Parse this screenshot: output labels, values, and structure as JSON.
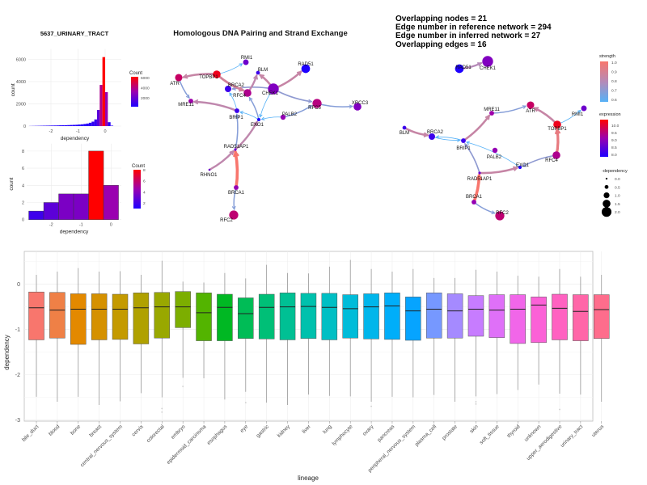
{
  "chart_data": [
    {
      "type": "bar",
      "title": "5637_URINARY_TRACT",
      "xlabel": "dependency",
      "ylabel": "count",
      "xticks": [
        "-2",
        "-1",
        "0"
      ],
      "yticks": [
        "0",
        "2000",
        "4000",
        "6000"
      ],
      "ylim": [
        0,
        6500
      ],
      "legend": {
        "title": "Count",
        "labels": [
          "2000",
          "4000",
          "6000"
        ],
        "low": "#1E00FF",
        "high": "#FF0000",
        "placement": "right"
      },
      "bin_width": 0.1,
      "bins": [
        {
          "x": -2.75,
          "count": 10
        },
        {
          "x": -2.65,
          "count": 15
        },
        {
          "x": -2.55,
          "count": 20
        },
        {
          "x": -2.45,
          "count": 25
        },
        {
          "x": -2.35,
          "count": 30
        },
        {
          "x": -2.25,
          "count": 35
        },
        {
          "x": -2.15,
          "count": 40
        },
        {
          "x": -2.05,
          "count": 45
        },
        {
          "x": -1.95,
          "count": 50
        },
        {
          "x": -1.85,
          "count": 55
        },
        {
          "x": -1.75,
          "count": 60
        },
        {
          "x": -1.65,
          "count": 70
        },
        {
          "x": -1.55,
          "count": 75
        },
        {
          "x": -1.45,
          "count": 80
        },
        {
          "x": -1.35,
          "count": 90
        },
        {
          "x": -1.25,
          "count": 100
        },
        {
          "x": -1.15,
          "count": 110
        },
        {
          "x": -1.05,
          "count": 120
        },
        {
          "x": -0.95,
          "count": 140
        },
        {
          "x": -0.85,
          "count": 160
        },
        {
          "x": -0.75,
          "count": 190
        },
        {
          "x": -0.65,
          "count": 230
        },
        {
          "x": -0.55,
          "count": 300
        },
        {
          "x": -0.45,
          "count": 400
        },
        {
          "x": -0.35,
          "count": 600
        },
        {
          "x": -0.25,
          "count": 1450
        },
        {
          "x": -0.15,
          "count": 3700
        },
        {
          "x": -0.05,
          "count": 6200
        },
        {
          "x": 0.05,
          "count": 3050
        },
        {
          "x": 0.15,
          "count": 350
        },
        {
          "x": 0.25,
          "count": 40
        }
      ]
    },
    {
      "type": "bar",
      "xlabel": "dependency",
      "ylabel": "count",
      "xticks": [
        "-2",
        "-1",
        "0"
      ],
      "yticks": [
        "0",
        "2",
        "4",
        "6",
        "8"
      ],
      "ylim": [
        0,
        8.3
      ],
      "legend": {
        "title": "Count",
        "labels": [
          "2",
          "4",
          "6",
          "8"
        ],
        "low": "#1E00FF",
        "high": "#FF0000",
        "placement": "right"
      },
      "bin_width": 0.5,
      "bins": [
        {
          "x": -2.5,
          "count": 1
        },
        {
          "x": -2.0,
          "count": 2
        },
        {
          "x": -1.5,
          "count": 3
        },
        {
          "x": -1.0,
          "count": 3
        },
        {
          "x": -0.5,
          "count": 8
        },
        {
          "x": 0.0,
          "count": 4
        }
      ]
    },
    {
      "type": "network",
      "title": "Homologous DNA Pairing and Strand Exchange",
      "edges": [
        {
          "from": "CHEK1",
          "to": "RAD51",
          "strength": 0.85
        },
        {
          "from": "CHEK1",
          "to": "BLM",
          "strength": 0.85
        },
        {
          "from": "CHEK1",
          "to": "RFC5",
          "strength": 0.72
        },
        {
          "from": "CHEK1",
          "to": "BRCA2",
          "strength": 0.72
        },
        {
          "from": "TOPBP1",
          "to": "ATR",
          "strength": 0.85
        },
        {
          "from": "TOPBP1",
          "to": "RMI1",
          "strength": 0.6
        },
        {
          "from": "TOPBP1",
          "to": "RFC4",
          "strength": 0.88
        },
        {
          "from": "ATR",
          "to": "MRE11",
          "strength": 0.7
        },
        {
          "from": "BRIP1",
          "to": "MRE11",
          "strength": 0.83
        },
        {
          "from": "BRIP1",
          "to": "BRCA2",
          "strength": 0.6
        },
        {
          "from": "RFC4",
          "to": "BLM",
          "strength": 0.83
        },
        {
          "from": "EXO1",
          "to": "RFC4",
          "strength": 0.7
        },
        {
          "from": "EXO1",
          "to": "BRIP1",
          "strength": 0.6
        },
        {
          "from": "PALB2",
          "to": "EXO1",
          "strength": 0.6
        },
        {
          "from": "CHEK1",
          "to": "EXO1",
          "strength": 0.6
        },
        {
          "from": "PALB2",
          "to": "RFC5",
          "strength": 0.7
        },
        {
          "from": "RFC5",
          "to": "XRCC3",
          "strength": 0.7
        },
        {
          "from": "RAD51AP1",
          "to": "BRIP1",
          "strength": 0.7
        },
        {
          "from": "RAD51AP1",
          "to": "EXO1",
          "strength": 0.83
        },
        {
          "from": "RHNO1",
          "to": "RAD51AP1",
          "strength": 0.83
        },
        {
          "from": "BRCA1",
          "to": "RAD51AP1",
          "strength": 1.0
        },
        {
          "from": "BRCA1",
          "to": "RFC2",
          "strength": 0.7
        }
      ]
    },
    {
      "type": "network",
      "annotations": [
        "Overlapping nodes = 21",
        "Edge number in reference network = 294",
        "Edge number in inferred network = 27",
        "Overlapping edges = 16"
      ],
      "edges": [
        {
          "from": "RAD51",
          "to": "CHEK1",
          "strength": 0.8
        },
        {
          "from": "MRE11",
          "to": "ATR",
          "strength": 0.7
        },
        {
          "from": "TOPBP1",
          "to": "ATR",
          "strength": 0.85
        },
        {
          "from": "TOPBP1",
          "to": "RMI1",
          "strength": 0.6
        },
        {
          "from": "BLM",
          "to": "BRCA2",
          "strength": 0.85
        },
        {
          "from": "BRIP1",
          "to": "BRCA2",
          "strength": 0.6
        },
        {
          "from": "BRCA2",
          "to": "BRIP1",
          "strength": 0.6
        },
        {
          "from": "BRIP1",
          "to": "MRE11",
          "strength": 0.85
        },
        {
          "from": "EXO1",
          "to": "BRIP1",
          "strength": 0.6
        },
        {
          "from": "RFC4",
          "to": "EXO1",
          "strength": 0.72
        },
        {
          "from": "RFC4",
          "to": "TOPBP1",
          "strength": 0.95
        },
        {
          "from": "RAD51AP1",
          "to": "BRIP1",
          "strength": 0.72
        },
        {
          "from": "RAD51AP1",
          "to": "EXO1",
          "strength": 0.85
        },
        {
          "from": "BRCA1",
          "to": "RAD51AP1",
          "strength": 1.0
        },
        {
          "from": "BRCA1",
          "to": "RFC2",
          "strength": 0.7
        }
      ],
      "legends": {
        "strength": {
          "title": "strength",
          "labels": [
            "1.0",
            "0.9",
            "0.8",
            "0.7",
            "0.6"
          ],
          "low": "#56B1F7",
          "high": "#F8766D"
        },
        "expression": {
          "title": "expression",
          "labels": [
            "10.0",
            "9.5",
            "9.0",
            "8.5",
            "8.0"
          ],
          "low": "#1E00FF",
          "high": "#FF0000"
        },
        "dependency": {
          "title": "-dependency",
          "labels": [
            "0.0",
            "0.5",
            "1.0",
            "1.5",
            "2.0"
          ]
        }
      }
    },
    {
      "type": "boxplot",
      "xlabel": "lineage",
      "ylabel": "dependency",
      "yticks": [
        "0",
        "-1",
        "-2",
        "-3"
      ],
      "ylim": [
        -3.0,
        0.7
      ],
      "grid": true,
      "categories": [
        "bile_duct",
        "blood",
        "bone",
        "breast",
        "central_nervous_system",
        "cervix",
        "colorectal",
        "embryo",
        "epidermoid_carcinoma",
        "esophagus",
        "eye",
        "gastric",
        "kidney",
        "liver",
        "lung",
        "lymphocyte",
        "ovary",
        "pancreas",
        "peripheral_nervous_system",
        "plasma_cell",
        "prostate",
        "skin",
        "soft_tissue",
        "thyroid",
        "unknown",
        "upper_aerodigestive",
        "urinary_tract",
        "uterus"
      ],
      "boxes": [
        {
          "low": -2.49,
          "q1": -1.23,
          "median": -0.52,
          "q3": -0.17,
          "high": 0.21,
          "outliers": []
        },
        {
          "low": -2.6,
          "q1": -1.19,
          "median": -0.57,
          "q3": -0.18,
          "high": 0.28,
          "outliers": []
        },
        {
          "low": -2.49,
          "q1": -1.33,
          "median": -0.55,
          "q3": -0.21,
          "high": 0.36,
          "outliers": []
        },
        {
          "low": -2.67,
          "q1": -1.23,
          "median": -0.55,
          "q3": -0.21,
          "high": 0.28,
          "outliers": []
        },
        {
          "low": -2.59,
          "q1": -1.22,
          "median": -0.55,
          "q3": -0.22,
          "high": 0.29,
          "outliers": []
        },
        {
          "low": -2.41,
          "q1": -1.32,
          "median": -0.52,
          "q3": -0.19,
          "high": 0.21,
          "outliers": []
        },
        {
          "low": -2.5,
          "q1": -1.19,
          "median": -0.5,
          "q3": -0.18,
          "high": 0.52,
          "outliers": [
            -2.75,
            -2.83
          ]
        },
        {
          "low": -2.07,
          "q1": -0.96,
          "median": -0.5,
          "q3": -0.16,
          "high": 0.06,
          "outliers": [
            -2.26
          ]
        },
        {
          "low": -2.08,
          "q1": -1.25,
          "median": -0.63,
          "q3": -0.19,
          "high": 0.04,
          "outliers": []
        },
        {
          "low": -2.55,
          "q1": -1.25,
          "median": -0.51,
          "q3": -0.22,
          "high": 0.25,
          "outliers": []
        },
        {
          "low": -2.38,
          "q1": -1.2,
          "median": -0.65,
          "q3": -0.3,
          "high": 0.13,
          "outliers": [
            -2.62
          ]
        },
        {
          "low": -2.62,
          "q1": -1.21,
          "median": -0.51,
          "q3": -0.22,
          "high": 0.43,
          "outliers": []
        },
        {
          "low": -2.67,
          "q1": -1.23,
          "median": -0.5,
          "q3": -0.19,
          "high": 0.25,
          "outliers": []
        },
        {
          "low": -2.44,
          "q1": -1.2,
          "median": -0.49,
          "q3": -0.2,
          "high": 0.24,
          "outliers": []
        },
        {
          "low": -2.47,
          "q1": -1.23,
          "median": -0.51,
          "q3": -0.2,
          "high": 0.39,
          "outliers": []
        },
        {
          "low": -2.48,
          "q1": -1.19,
          "median": -0.54,
          "q3": -0.23,
          "high": 0.54,
          "outliers": []
        },
        {
          "low": -2.6,
          "q1": -1.21,
          "median": -0.5,
          "q3": -0.21,
          "high": 0.34,
          "outliers": [
            -2.7
          ]
        },
        {
          "low": -2.49,
          "q1": -1.22,
          "median": -0.48,
          "q3": -0.19,
          "high": 0.28,
          "outliers": []
        },
        {
          "low": -2.5,
          "q1": -1.24,
          "median": -0.59,
          "q3": -0.28,
          "high": 0.34,
          "outliers": []
        },
        {
          "low": -2.45,
          "q1": -1.19,
          "median": -0.55,
          "q3": -0.19,
          "high": 0.14,
          "outliers": []
        },
        {
          "low": -2.6,
          "q1": -1.19,
          "median": -0.59,
          "q3": -0.21,
          "high": 0.14,
          "outliers": []
        },
        {
          "low": -2.48,
          "q1": -1.15,
          "median": -0.55,
          "q3": -0.25,
          "high": 0.32,
          "outliers": [
            -2.6,
            -2.65
          ]
        },
        {
          "low": -2.43,
          "q1": -1.18,
          "median": -0.57,
          "q3": -0.23,
          "high": 0.28,
          "outliers": []
        },
        {
          "low": -2.34,
          "q1": -1.31,
          "median": -0.55,
          "q3": -0.23,
          "high": 0.19,
          "outliers": []
        },
        {
          "low": -2.22,
          "q1": -1.29,
          "median": -0.46,
          "q3": -0.28,
          "high": 0.17,
          "outliers": []
        },
        {
          "low": -2.42,
          "q1": -1.23,
          "median": -0.53,
          "q3": -0.22,
          "high": 0.34,
          "outliers": [
            -2.77
          ]
        },
        {
          "low": -2.44,
          "q1": -1.25,
          "median": -0.6,
          "q3": -0.23,
          "high": 0.17,
          "outliers": []
        },
        {
          "low": -2.6,
          "q1": -1.2,
          "median": -0.56,
          "q3": -0.23,
          "high": 0.21,
          "outliers": []
        }
      ]
    }
  ],
  "nodes": {
    "RMI1": {
      "expression": 8.8,
      "dependency": 0.8
    },
    "BLM": {
      "expression": 8.3,
      "dependency": 0.4
    },
    "RAD51": {
      "expression": 8.0,
      "dependency": 1.5
    },
    "ATR": {
      "expression": 9.8,
      "dependency": 1.2
    },
    "TOPBP1": {
      "expression": 10.3,
      "dependency": 1.3
    },
    "BRCA2": {
      "expression": 8.3,
      "dependency": 1.0
    },
    "RFC4": {
      "expression": 9.5,
      "dependency": 1.3
    },
    "CHEK1": {
      "expression": 9.0,
      "dependency": 2.0
    },
    "MRE11": {
      "expression": 9.3,
      "dependency": 0.6
    },
    "RFC5": {
      "expression": 9.6,
      "dependency": 1.6
    },
    "XRCC3": {
      "expression": 9.0,
      "dependency": 1.3
    },
    "BRIP1": {
      "expression": 8.3,
      "dependency": 0.6
    },
    "PALB2": {
      "expression": 9.2,
      "dependency": 0.7
    },
    "EXO1": {
      "expression": 8.0,
      "dependency": 0.3
    },
    "RAD51AP1": {
      "expression": 8.8,
      "dependency": 0.1
    },
    "RHNO1": {
      "expression": 8.8,
      "dependency": 0.0
    },
    "BRCA1": {
      "expression": 9.2,
      "dependency": 0.6
    },
    "RFC2": {
      "expression": 9.7,
      "dependency": 1.6
    }
  }
}
